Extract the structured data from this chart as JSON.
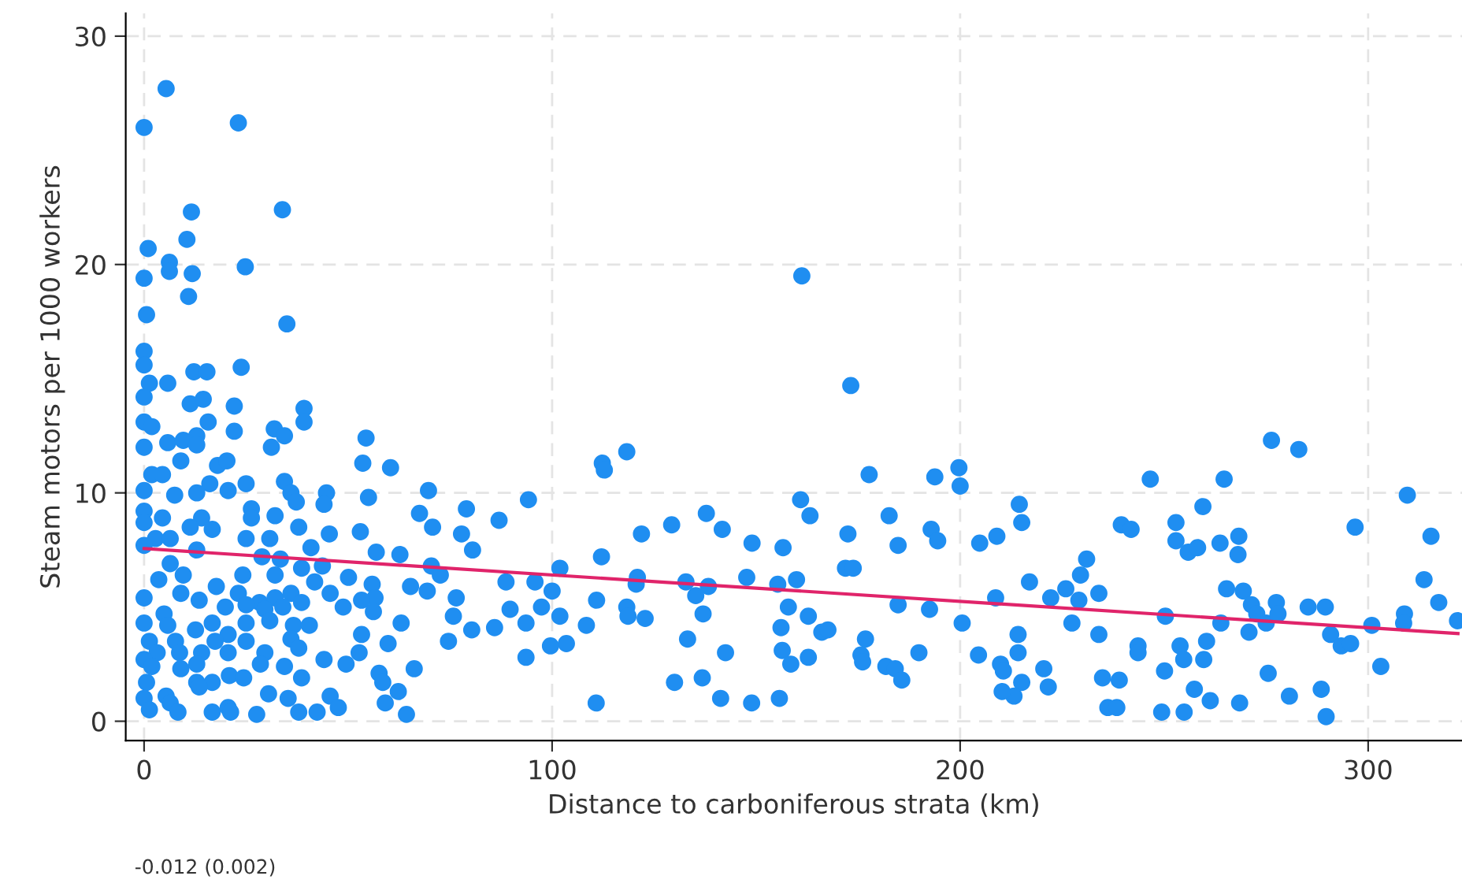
{
  "chart_data": {
    "type": "scatter",
    "xlabel": "Distance to carboniferous strata (km)",
    "ylabel": "Steam motors per 1000 workers",
    "annotations": [
      "-0.012 (0.002)"
    ],
    "xlim": [
      -4.5,
      323
    ],
    "ylim": [
      -0.85,
      31
    ],
    "xticks": [
      0,
      100,
      200,
      300
    ],
    "yticks": [
      0,
      10,
      20,
      30
    ],
    "grid": true,
    "marker": "circle",
    "series": [
      {
        "color": "#1f8ef1",
        "x": [
          0,
          5.4,
          23.1,
          11.6,
          33.9,
          10.5,
          1,
          6.2,
          6.2,
          11.8,
          0,
          24.8,
          10.9,
          0.6,
          35,
          0,
          0,
          1.3,
          5.8,
          12.2,
          15.4,
          23.8,
          0,
          11.3,
          14.5,
          22.1,
          39.2,
          39.2,
          0,
          1.9,
          15.7,
          12.9,
          22.1,
          31.9,
          34.4,
          5.8,
          9.6,
          12.9,
          0,
          31.2,
          9,
          18,
          20.3,
          54.4,
          53.6,
          60.4,
          1.9,
          4.5,
          16.1,
          25,
          34.4,
          20.6,
          0,
          7.5,
          12.9,
          36,
          44.7,
          37.3,
          44.1,
          55,
          69.7,
          26.3,
          0,
          0,
          4.5,
          14.1,
          26.3,
          32.1,
          11.3,
          16.7,
          37.9,
          67.5,
          79,
          94.2,
          2.8,
          6.4,
          25,
          30.8,
          45.4,
          53,
          70.7,
          77.8,
          87,
          0,
          12.9,
          40.9,
          56.9,
          62.7,
          80.5,
          6.4,
          28.9,
          33.4,
          43.7,
          38.6,
          70.4,
          72.6,
          101.9,
          3.6,
          9.6,
          24.2,
          32.1,
          50.1,
          41.8,
          55.9,
          65.3,
          88.7,
          95.8,
          0,
          9,
          17.7,
          23.1,
          28.3,
          32.1,
          36,
          45.6,
          56.6,
          69.4,
          76.5,
          100,
          4.9,
          13.5,
          19.9,
          25,
          29.6,
          34,
          38.6,
          48.8,
          53.3,
          89.7,
          97.4,
          0,
          5.8,
          16.7,
          25,
          30.8,
          36.6,
          40.5,
          56.2,
          75.8,
          101.9,
          63,
          12.6,
          20.6,
          80.3,
          85.9,
          93.6,
          108.4,
          1.3,
          7.7,
          17.4,
          25,
          36,
          53.3,
          74.6,
          103.5,
          99.6,
          59.8,
          3.2,
          8.7,
          14.1,
          20.6,
          29.6,
          37.9,
          52.7,
          93.6,
          0,
          1.9,
          9,
          12.9,
          28.5,
          34.4,
          44.1,
          49.5,
          66.2,
          0.6,
          12.9,
          16.7,
          20.9,
          24.4,
          38.6,
          57.6,
          58.5,
          13.5,
          0,
          5.4,
          30.5,
          35.3,
          45.6,
          59.1,
          62.3,
          1.3,
          6.4,
          8.3,
          16.7,
          20.6,
          21.2,
          27.6,
          37.9,
          42.4,
          47.6,
          64.3,
          161.2,
          173.2,
          112.3,
          112.8,
          118.3,
          177.7,
          193.8,
          199.7,
          200,
          214.5,
          215.1,
          160.9,
          163.2,
          137.8,
          141.7,
          129.3,
          121.9,
          182.6,
          184.8,
          192.9,
          194.5,
          204.8,
          209,
          149,
          156.6,
          172.5,
          112.1,
          171.9,
          173.8,
          120.9,
          120.6,
          132.8,
          138.3,
          135.2,
          147.7,
          155.3,
          159.9,
          217,
          222.2,
          110.9,
          118.3,
          118.6,
          122.8,
          137,
          157.9,
          162.8,
          184.8,
          192.5,
          208.7,
          200.5,
          133.2,
          142.5,
          156.1,
          156.4,
          158.5,
          162.8,
          166.1,
          167.6,
          176.8,
          175.7,
          176.1,
          181.8,
          184.1,
          185.7,
          189.9,
          204.5,
          214.2,
          214.2,
          209.9,
          210.6,
          215.1,
          213.2,
          210.3,
          220.5,
          221.6,
          130,
          136.8,
          141.3,
          148.9,
          155.7,
          110.8,
          276.3,
          283,
          246.6,
          264.7,
          309.6,
          259.5,
          239.5,
          241.9,
          252.9,
          252.9,
          255.9,
          258.2,
          263.7,
          268.3,
          268.1,
          296.8,
          315.4,
          231,
          229.5,
          225.9,
          229.1,
          234,
          227.4,
          234,
          265.3,
          269.4,
          271.4,
          272.7,
          275,
          277.5,
          277.9,
          285.3,
          289.5,
          250.3,
          263.9,
          270.8,
          290.8,
          293.4,
          295.7,
          300.9,
          308.9,
          308.7,
          313.7,
          317.3,
          321.9,
          303.1,
          243.6,
          243.6,
          253.9,
          254.8,
          259.7,
          260.4,
          250.1,
          234.9,
          239,
          236.2,
          238.4,
          249.4,
          254.9,
          257.4,
          261.3,
          268.5,
          275.5,
          280.7,
          288.5,
          289.7
        ],
        "values": [
          26,
          27.7,
          26.2,
          22.3,
          22.4,
          21.1,
          20.7,
          20.1,
          19.7,
          19.6,
          19.4,
          19.9,
          18.6,
          17.8,
          17.4,
          16.2,
          15.6,
          14.8,
          14.8,
          15.3,
          15.3,
          15.5,
          14.2,
          13.9,
          14.1,
          13.8,
          13.7,
          13.1,
          13.1,
          12.9,
          13.1,
          12.5,
          12.7,
          12.8,
          12.5,
          12.2,
          12.3,
          12.1,
          12,
          12,
          11.4,
          11.2,
          11.4,
          12.4,
          11.3,
          11.1,
          10.8,
          10.8,
          10.4,
          10.4,
          10.5,
          10.1,
          10.1,
          9.9,
          10,
          10,
          10,
          9.6,
          9.5,
          9.8,
          10.1,
          9.3,
          9.2,
          8.7,
          8.9,
          8.9,
          8.9,
          9,
          8.5,
          8.4,
          8.5,
          9.1,
          9.3,
          9.7,
          8,
          8,
          8,
          8,
          8.2,
          8.3,
          8.5,
          8.2,
          8.8,
          7.7,
          7.5,
          7.6,
          7.4,
          7.3,
          7.5,
          6.9,
          7.2,
          7.1,
          6.8,
          6.7,
          6.8,
          6.4,
          6.7,
          6.2,
          6.4,
          6.4,
          6.4,
          6.3,
          6.1,
          6,
          5.9,
          6.1,
          6.1,
          5.4,
          5.6,
          5.9,
          5.6,
          5.2,
          5.4,
          5.6,
          5.6,
          5.4,
          5.7,
          5.4,
          5.7,
          4.7,
          5.3,
          5,
          5.1,
          4.9,
          5,
          5.2,
          5,
          5.3,
          4.9,
          5,
          4.3,
          4.2,
          4.3,
          4.3,
          4.4,
          4.2,
          4.2,
          4.8,
          4.6,
          4.6,
          4.3,
          4,
          3.8,
          4,
          4.1,
          4.3,
          4.2,
          3.5,
          3.5,
          3.5,
          3.5,
          3.6,
          3.8,
          3.5,
          3.4,
          3.3,
          3.4,
          3,
          3,
          3,
          3,
          3,
          3.2,
          3,
          2.8,
          2.7,
          2.4,
          2.3,
          2.5,
          2.5,
          2.4,
          2.7,
          2.5,
          2.3,
          1.7,
          1.7,
          1.7,
          2,
          1.9,
          1.9,
          2.1,
          1.7,
          1.5,
          1,
          1.1,
          1.2,
          1,
          1.1,
          0.8,
          1.3,
          0.5,
          0.8,
          0.4,
          0.4,
          0.6,
          0.4,
          0.3,
          0.4,
          0.4,
          0.6,
          0.3,
          19.5,
          14.7,
          11.3,
          11,
          11.8,
          10.8,
          10.7,
          11.1,
          10.3,
          9.5,
          8.7,
          9.7,
          9,
          9.1,
          8.4,
          8.6,
          8.2,
          9,
          7.7,
          8.4,
          7.9,
          7.8,
          8.1,
          7.8,
          7.6,
          8.2,
          7.2,
          6.7,
          6.7,
          6.3,
          6,
          6.1,
          5.9,
          5.5,
          6.3,
          6,
          6.2,
          6.1,
          5.4,
          5.3,
          5,
          4.6,
          4.5,
          4.7,
          5,
          4.6,
          5.1,
          4.9,
          5.4,
          4.3,
          3.6,
          3,
          4.1,
          3.1,
          2.5,
          2.8,
          3.9,
          4,
          3.6,
          2.9,
          2.6,
          2.4,
          2.3,
          1.8,
          3,
          2.9,
          3.8,
          3,
          2.5,
          2.2,
          1.7,
          1.1,
          1.3,
          2.3,
          1.5,
          1.7,
          1.9,
          1,
          0.8,
          1,
          0.8,
          12.3,
          11.9,
          10.6,
          10.6,
          9.9,
          9.4,
          8.6,
          8.4,
          8.7,
          7.9,
          7.4,
          7.6,
          7.8,
          8.1,
          7.3,
          8.5,
          8.1,
          7.1,
          6.4,
          5.8,
          5.3,
          5.6,
          4.3,
          3.8,
          5.8,
          5.7,
          5.1,
          4.7,
          4.3,
          5.2,
          4.7,
          5,
          5,
          4.6,
          4.3,
          3.9,
          3.8,
          3.3,
          3.4,
          4.2,
          4.7,
          4.3,
          6.2,
          5.2,
          4.4,
          2.4,
          3.3,
          3,
          3.3,
          2.7,
          2.7,
          3.5,
          2.2,
          1.9,
          1.8,
          0.6,
          0.6,
          0.4,
          0.4,
          1.4,
          0.9,
          0.8,
          2.1,
          1.1,
          1.4,
          0.2
        ]
      },
      {
        "type": "line",
        "color": "#e0246a",
        "marker": "none",
        "x": [
          0,
          322
        ],
        "values": [
          7.56,
          3.84
        ]
      }
    ]
  }
}
